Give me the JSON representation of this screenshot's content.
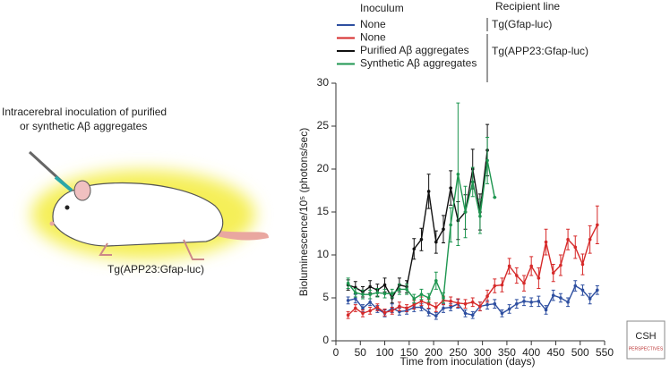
{
  "illustration": {
    "caption_lines": [
      "Intracerebral inoculation of purified",
      "or synthetic Aβ aggregates"
    ],
    "mouse_label": "Tg(APP23:Gfap-luc)"
  },
  "logo": [
    "CSH",
    "PERSPECTIVES"
  ],
  "chart_data": {
    "type": "line",
    "xlabel": "Time from inoculation (days)",
    "ylabel": "Bioluminescence/10⁵ (photons/sec)",
    "legend_headers": [
      "Inoculum",
      "Recipient line"
    ],
    "recipient_lines": [
      "Tg(Gfap-luc)",
      "Tg(APP23:Gfap-luc)"
    ],
    "xlim": [
      0,
      550
    ],
    "xticks": [
      0,
      50,
      100,
      150,
      200,
      250,
      300,
      350,
      400,
      450,
      500,
      550
    ],
    "ylim": [
      0,
      30
    ],
    "yticks": [
      0,
      5,
      10,
      15,
      20,
      25,
      30
    ],
    "series": [
      {
        "name": "None",
        "color": "#2e4fa0",
        "x": [
          25,
          40,
          55,
          70,
          85,
          100,
          115,
          130,
          145,
          160,
          175,
          190,
          205,
          220,
          235,
          250,
          265,
          280,
          295,
          310,
          325,
          340,
          355,
          370,
          385,
          400,
          415,
          430,
          445,
          460,
          475,
          490,
          505,
          520,
          535
        ],
        "values": [
          4.7,
          4.9,
          3.8,
          4.5,
          3.7,
          3.2,
          3.8,
          3.4,
          3.5,
          3.9,
          3.9,
          3.3,
          2.9,
          3.8,
          3.9,
          4.3,
          3.2,
          3.0,
          4.0,
          4.2,
          4.3,
          3.2,
          3.7,
          4.3,
          4.6,
          4.5,
          4.6,
          3.6,
          5.3,
          5.0,
          4.5,
          6.4,
          5.9,
          4.9,
          5.9
        ],
        "errors": [
          0.4,
          0.5,
          0.4,
          0.4,
          0.4,
          0.4,
          0.5,
          0.4,
          0.4,
          0.5,
          0.4,
          0.4,
          0.4,
          0.5,
          0.4,
          0.5,
          0.4,
          0.4,
          0.5,
          0.5,
          0.5,
          0.4,
          0.5,
          0.5,
          0.5,
          0.5,
          0.6,
          0.5,
          0.6,
          0.5,
          0.5,
          0.6,
          0.6,
          0.6,
          0.5
        ]
      },
      {
        "name": "None",
        "color": "#d62a2a",
        "x": [
          25,
          40,
          55,
          70,
          85,
          100,
          115,
          130,
          145,
          160,
          175,
          190,
          205,
          220,
          235,
          250,
          265,
          280,
          295,
          310,
          325,
          340,
          355,
          370,
          385,
          400,
          415,
          430,
          445,
          460,
          475,
          490,
          505,
          520,
          535
        ],
        "values": [
          3.0,
          3.8,
          3.2,
          3.5,
          3.9,
          3.3,
          3.5,
          4.0,
          3.8,
          4.2,
          4.6,
          4.3,
          3.9,
          4.7,
          4.6,
          4.4,
          4.3,
          4.5,
          4.0,
          5.2,
          6.4,
          6.5,
          8.7,
          7.6,
          6.7,
          8.7,
          7.3,
          11.5,
          7.9,
          8.8,
          11.8,
          10.9,
          8.9,
          11.8,
          13.5
        ],
        "errors": [
          0.4,
          0.4,
          0.4,
          0.4,
          0.4,
          0.4,
          0.4,
          0.5,
          0.4,
          0.5,
          0.5,
          0.5,
          0.5,
          0.5,
          0.5,
          0.5,
          0.5,
          0.5,
          0.5,
          0.7,
          0.8,
          0.8,
          0.9,
          0.9,
          0.9,
          1.1,
          1.2,
          1.5,
          1.0,
          1.2,
          1.2,
          1.3,
          1.2,
          1.6,
          2.2
        ]
      },
      {
        "name": "Purified Aβ aggregates",
        "color": "#111111",
        "x": [
          25,
          40,
          55,
          70,
          85,
          100,
          115,
          130,
          145,
          160,
          175,
          190,
          205,
          220,
          235,
          250,
          265,
          280,
          295,
          310
        ],
        "values": [
          6.5,
          6.2,
          5.7,
          6.3,
          5.9,
          6.5,
          5.0,
          6.5,
          6.3,
          10.7,
          11.8,
          17.4,
          11.5,
          13.0,
          17.8,
          14.0,
          15.0,
          20.0,
          15.0,
          22.2
        ],
        "errors": [
          0.6,
          0.7,
          0.6,
          0.7,
          0.7,
          0.8,
          0.6,
          0.8,
          0.7,
          1.2,
          1.3,
          2.0,
          1.3,
          1.6,
          2.0,
          2.2,
          2.0,
          2.3,
          2.1,
          3.0
        ]
      },
      {
        "name": "Synthetic Aβ aggregates",
        "color": "#1e9650",
        "x": [
          25,
          40,
          55,
          70,
          85,
          100,
          115,
          130,
          145,
          160,
          175,
          190,
          205,
          220,
          235,
          250,
          265,
          280,
          295,
          310,
          325
        ],
        "values": [
          6.7,
          5.6,
          5.4,
          5.4,
          5.6,
          5.5,
          5.5,
          6.0,
          6.0,
          4.9,
          5.4,
          5.0,
          7.0,
          5.0,
          13.5,
          19.4,
          15.0,
          18.5,
          14.5,
          21.0,
          16.7
        ],
        "errors": [
          0.6,
          0.5,
          0.5,
          0.5,
          0.5,
          0.5,
          0.5,
          0.6,
          0.6,
          0.5,
          0.6,
          0.5,
          1.0,
          0.6,
          2.0,
          8.3,
          3.0,
          1.7,
          2.0,
          2.7,
          0
        ]
      }
    ]
  }
}
